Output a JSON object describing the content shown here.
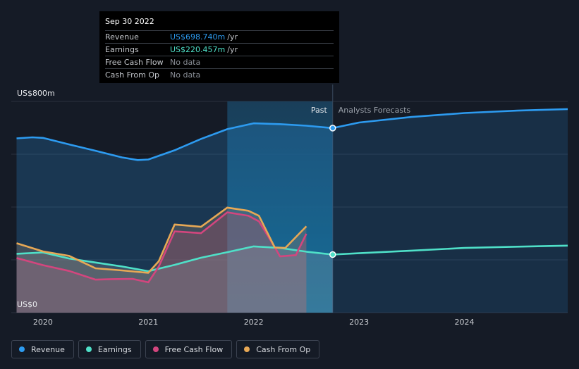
{
  "tooltip": {
    "date": "Sep 30 2022",
    "rows": [
      {
        "label": "Revenue",
        "value": "US$698.740m",
        "unit": "/yr",
        "color": "#2d9bf0"
      },
      {
        "label": "Earnings",
        "value": "US$220.457m",
        "unit": "/yr",
        "color": "#4fe0c8"
      },
      {
        "label": "Free Cash Flow",
        "value": "No data",
        "unit": "",
        "color": "#8a8f97"
      },
      {
        "label": "Cash From Op",
        "value": "No data",
        "unit": "",
        "color": "#8a8f97"
      }
    ]
  },
  "chart_data": {
    "type": "line",
    "ylim": [
      0,
      800
    ],
    "xlim": [
      2019.7,
      2024.98
    ],
    "y_tick_labels": [
      {
        "value": 800,
        "label": "US$800m"
      },
      {
        "value": 0,
        "label": "US$0"
      }
    ],
    "x_ticks": [
      {
        "value": 2020.0,
        "label": "2020"
      },
      {
        "value": 2021.0,
        "label": "2021"
      },
      {
        "value": 2022.0,
        "label": "2022"
      },
      {
        "value": 2023.0,
        "label": "2023"
      },
      {
        "value": 2024.0,
        "label": "2024"
      }
    ],
    "gridlines_y": [
      800,
      600,
      400,
      200,
      0
    ],
    "past_label": "Past",
    "forecast_label": "Analysts Forecasts",
    "divider_x": 2022.75,
    "highlight_start_x": 2021.75,
    "series": [
      {
        "name": "Revenue",
        "color": "#2d9bf0",
        "points": [
          [
            2019.75,
            660
          ],
          [
            2019.9,
            664
          ],
          [
            2020.0,
            662
          ],
          [
            2020.25,
            637
          ],
          [
            2020.5,
            613
          ],
          [
            2020.75,
            588
          ],
          [
            2020.9,
            578
          ],
          [
            2021.0,
            580
          ],
          [
            2021.25,
            615
          ],
          [
            2021.5,
            658
          ],
          [
            2021.75,
            695
          ],
          [
            2022.0,
            717
          ],
          [
            2022.25,
            714
          ],
          [
            2022.5,
            708
          ],
          [
            2022.75,
            699
          ]
        ],
        "forecast": [
          [
            2022.75,
            699
          ],
          [
            2023.0,
            720
          ],
          [
            2023.5,
            741
          ],
          [
            2024.0,
            756
          ],
          [
            2024.5,
            765
          ],
          [
            2024.98,
            771
          ]
        ]
      },
      {
        "name": "Earnings",
        "color": "#4fe0c8",
        "points": [
          [
            2019.75,
            223
          ],
          [
            2020.0,
            228
          ],
          [
            2020.25,
            205
          ],
          [
            2020.5,
            190
          ],
          [
            2020.75,
            175
          ],
          [
            2021.0,
            157
          ],
          [
            2021.25,
            181
          ],
          [
            2021.5,
            208
          ],
          [
            2021.75,
            229
          ],
          [
            2022.0,
            251
          ],
          [
            2022.25,
            245
          ],
          [
            2022.5,
            231
          ],
          [
            2022.75,
            220
          ]
        ],
        "forecast": [
          [
            2022.75,
            220
          ],
          [
            2023.0,
            225
          ],
          [
            2023.5,
            235
          ],
          [
            2024.0,
            245
          ],
          [
            2024.5,
            250
          ],
          [
            2024.98,
            254
          ]
        ]
      },
      {
        "name": "Free Cash Flow",
        "color": "#d3467e",
        "points": [
          [
            2019.75,
            207
          ],
          [
            2020.0,
            180
          ],
          [
            2020.25,
            158
          ],
          [
            2020.5,
            125
          ],
          [
            2020.65,
            127
          ],
          [
            2020.85,
            128
          ],
          [
            2021.0,
            115
          ],
          [
            2021.1,
            175
          ],
          [
            2021.25,
            308
          ],
          [
            2021.5,
            301
          ],
          [
            2021.75,
            380
          ],
          [
            2021.95,
            367
          ],
          [
            2022.05,
            346
          ],
          [
            2022.2,
            248
          ],
          [
            2022.25,
            213
          ],
          [
            2022.4,
            218
          ],
          [
            2022.5,
            299
          ]
        ],
        "forecast": []
      },
      {
        "name": "Cash From Op",
        "color": "#e7a855",
        "points": [
          [
            2019.75,
            263
          ],
          [
            2020.0,
            232
          ],
          [
            2020.25,
            215
          ],
          [
            2020.5,
            168
          ],
          [
            2020.75,
            160
          ],
          [
            2021.0,
            151
          ],
          [
            2021.1,
            195
          ],
          [
            2021.25,
            334
          ],
          [
            2021.5,
            325
          ],
          [
            2021.75,
            398
          ],
          [
            2021.95,
            386
          ],
          [
            2022.05,
            367
          ],
          [
            2022.2,
            247
          ],
          [
            2022.3,
            245
          ],
          [
            2022.5,
            327
          ]
        ],
        "forecast": []
      }
    ],
    "markers": [
      {
        "series": "Revenue",
        "x": 2022.75,
        "y": 699
      },
      {
        "series": "Earnings",
        "x": 2022.75,
        "y": 220
      }
    ]
  },
  "legend": [
    {
      "label": "Revenue",
      "color": "#2d9bf0"
    },
    {
      "label": "Earnings",
      "color": "#4fe0c8"
    },
    {
      "label": "Free Cash Flow",
      "color": "#d3467e"
    },
    {
      "label": "Cash From Op",
      "color": "#e7a855"
    }
  ]
}
